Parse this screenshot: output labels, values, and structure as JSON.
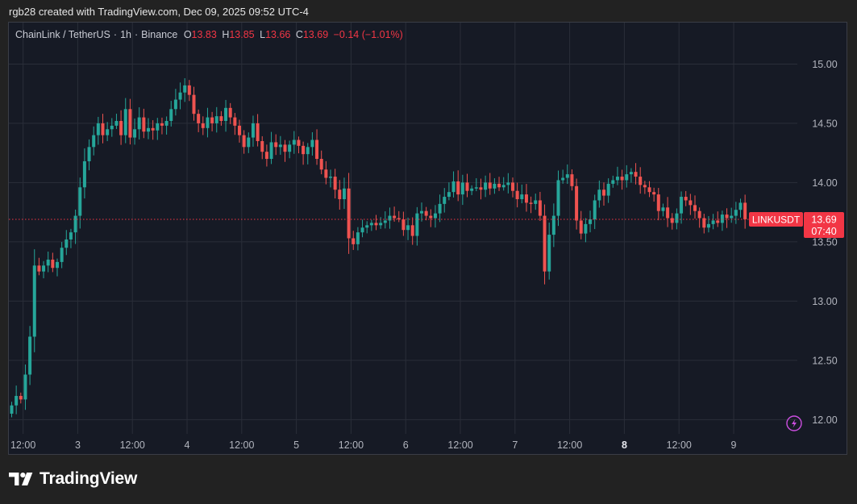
{
  "caption": "rgb28 created with TradingView.com, Dec 09, 2025 09:52 UTC-4",
  "legend": {
    "symbol": "ChainLink / TetherUS",
    "interval": "1h",
    "exchange": "Binance",
    "o_label": "O",
    "o_value": "13.83",
    "h_label": "H",
    "h_value": "13.85",
    "l_label": "L",
    "l_value": "13.66",
    "c_label": "C",
    "c_value": "13.69",
    "change": "−0.14 (−1.01%)"
  },
  "brand": {
    "name": "TradingView",
    "logo_icon": "tradingview-logo-icon"
  },
  "chart_data": {
    "type": "candlestick",
    "y_ticks": [
      "15.00",
      "14.50",
      "14.00",
      "13.50",
      "13.00",
      "12.50",
      "12.00"
    ],
    "ylim": [
      11.88,
      15.35
    ],
    "x_ticks": [
      {
        "label": "12:00",
        "pos": 2.5,
        "bold": false
      },
      {
        "label": "3",
        "pos": 14.5,
        "bold": false
      },
      {
        "label": "12:00",
        "pos": 26.5,
        "bold": false
      },
      {
        "label": "4",
        "pos": 38.5,
        "bold": false
      },
      {
        "label": "12:00",
        "pos": 50.5,
        "bold": false
      },
      {
        "label": "5",
        "pos": 62.5,
        "bold": false
      },
      {
        "label": "12:00",
        "pos": 74.5,
        "bold": false
      },
      {
        "label": "6",
        "pos": 86.5,
        "bold": false
      },
      {
        "label": "12:00",
        "pos": 98.5,
        "bold": false
      },
      {
        "label": "7",
        "pos": 110.5,
        "bold": false
      },
      {
        "label": "12:00",
        "pos": 122.5,
        "bold": false
      },
      {
        "label": "8",
        "pos": 134.5,
        "bold": true
      },
      {
        "label": "12:00",
        "pos": 146.5,
        "bold": false
      },
      {
        "label": "9",
        "pos": 158.5,
        "bold": false
      }
    ],
    "last_price": {
      "symbol": "LINKUSDT",
      "price": "13.69",
      "countdown": "07:40",
      "value": 13.69
    },
    "colors": {
      "up": "#26a69a",
      "down": "#ef5350",
      "grid": "#2a2e39",
      "axis_text": "#b2b5be",
      "price_line": "#f23645"
    },
    "close_series": [
      12.12,
      12.2,
      12.17,
      12.38,
      12.7,
      13.3,
      13.25,
      13.3,
      13.35,
      13.28,
      13.33,
      13.45,
      13.52,
      13.58,
      13.72,
      13.96,
      14.18,
      14.3,
      14.4,
      14.5,
      14.4,
      14.45,
      14.48,
      14.52,
      14.4,
      14.62,
      14.38,
      14.45,
      14.55,
      14.43,
      14.46,
      14.44,
      14.5,
      14.48,
      14.52,
      14.62,
      14.7,
      14.76,
      14.82,
      14.74,
      14.58,
      14.5,
      14.46,
      14.55,
      14.5,
      14.56,
      14.52,
      14.63,
      14.55,
      14.48,
      14.4,
      14.3,
      14.38,
      14.5,
      14.35,
      14.26,
      14.2,
      14.34,
      14.3,
      14.32,
      14.26,
      14.32,
      14.36,
      14.31,
      14.24,
      14.3,
      14.36,
      14.2,
      14.11,
      14.04,
      14.05,
      13.94,
      13.86,
      13.95,
      13.53,
      13.48,
      13.58,
      13.62,
      13.64,
      13.66,
      13.64,
      13.66,
      13.68,
      13.72,
      13.7,
      13.69,
      13.6,
      13.64,
      13.55,
      13.74,
      13.76,
      13.72,
      13.7,
      13.74,
      13.82,
      13.88,
      13.92,
      14.01,
      13.9,
      14.0,
      13.93,
      13.95,
      13.96,
      13.94,
      14.0,
      13.95,
      13.99,
      13.96,
      13.98,
      14.0,
      13.93,
      13.86,
      13.9,
      13.83,
      13.82,
      13.85,
      13.72,
      13.25,
      13.56,
      13.72,
      14.02,
      14.04,
      14.07,
      13.97,
      13.68,
      13.57,
      13.65,
      13.69,
      13.85,
      13.94,
      13.89,
      13.99,
      14.02,
      14.05,
      14.02,
      14.07,
      14.09,
      14.05,
      13.98,
      13.96,
      13.92,
      13.9,
      13.76,
      13.79,
      13.7,
      13.66,
      13.74,
      13.88,
      13.85,
      13.81,
      13.76,
      13.7,
      13.62,
      13.65,
      13.68,
      13.66,
      13.73,
      13.7,
      13.72,
      13.77,
      13.83,
      13.69
    ]
  }
}
